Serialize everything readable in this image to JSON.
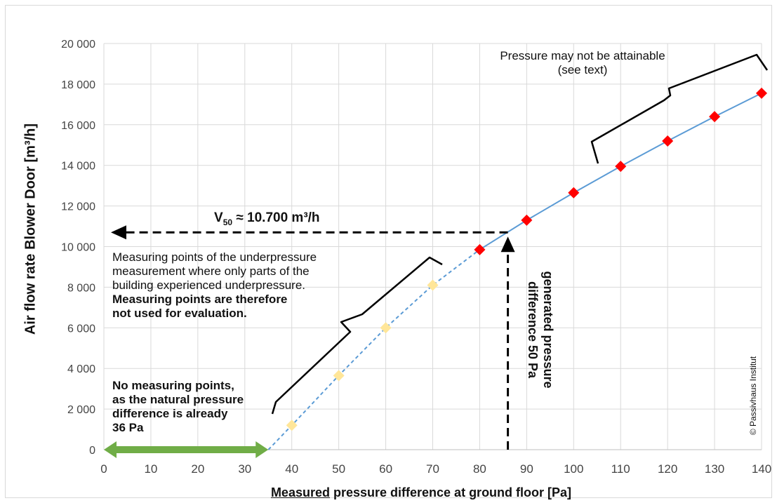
{
  "chart_data": {
    "type": "scatter",
    "xlabel_underlined": "Measured",
    "xlabel_rest": " pressure difference at ground floor [Pa]",
    "ylabel": "Air flow rate Blower Door [m³/h]",
    "xlim": [
      0,
      140
    ],
    "ylim": [
      0,
      20000
    ],
    "x_ticks": [
      0,
      10,
      20,
      30,
      40,
      50,
      60,
      70,
      80,
      90,
      100,
      110,
      120,
      130,
      140
    ],
    "y_ticks": [
      0,
      2000,
      4000,
      6000,
      8000,
      10000,
      12000,
      14000,
      16000,
      18000,
      20000
    ],
    "x_tick_labels": [
      "0",
      "10",
      "20",
      "30",
      "40",
      "50",
      "60",
      "70",
      "80",
      "90",
      "100",
      "110",
      "120",
      "130",
      "140"
    ],
    "y_tick_labels": [
      "0",
      "2 000",
      "4 000",
      "6 000",
      "8 000",
      "10 000",
      "12 000",
      "14 000",
      "16 000",
      "18 000",
      "20 000"
    ],
    "grid_x": true,
    "grid_y": true,
    "fit_curve": {
      "solid_x": [
        80,
        90,
        100,
        110,
        120,
        130,
        140
      ],
      "solid_y": [
        9850,
        11300,
        12650,
        13950,
        15200,
        16400,
        17550
      ],
      "dashed_x": [
        35,
        40,
        50,
        60,
        70,
        80
      ],
      "dashed_y": [
        0,
        1200,
        3650,
        6000,
        8100,
        9850
      ],
      "color": "#5b9bd5"
    },
    "series": [
      {
        "x": [
          80,
          90,
          100,
          110,
          120,
          130,
          140
        ],
        "y": [
          9850,
          11300,
          12650,
          13950,
          15200,
          16400,
          17550
        ],
        "color": "#ff0000",
        "marker": "diamond"
      },
      {
        "x": [
          40,
          50,
          60,
          70
        ],
        "y": [
          1200,
          3650,
          6000,
          8100
        ],
        "color": "#ffe699",
        "marker": "diamond"
      }
    ],
    "annotations": {
      "v50_sub": "50",
      "v50_value": " ≈ 10.700 m³/h",
      "v50_line_y": 10700,
      "pressure_line_x": 86,
      "generated_label": "generated pressure difference 50 Pa",
      "not_attainable": [
        "Pressure may not be attainable",
        "(see text)"
      ],
      "underpressure_regular": [
        "Measuring points of the underpressure",
        "measurement where only parts of the",
        "building experienced underpressure."
      ],
      "underpressure_bold": [
        "Measuring points are therefore",
        "not used for evaluation."
      ],
      "no_points": [
        "No measuring points,",
        "as the natural pressure",
        "difference is already",
        "36 Pa"
      ],
      "green_arrow_range": [
        0,
        35
      ],
      "green_color": "#70ad47",
      "copyright": "© Passivhaus Institut"
    }
  }
}
